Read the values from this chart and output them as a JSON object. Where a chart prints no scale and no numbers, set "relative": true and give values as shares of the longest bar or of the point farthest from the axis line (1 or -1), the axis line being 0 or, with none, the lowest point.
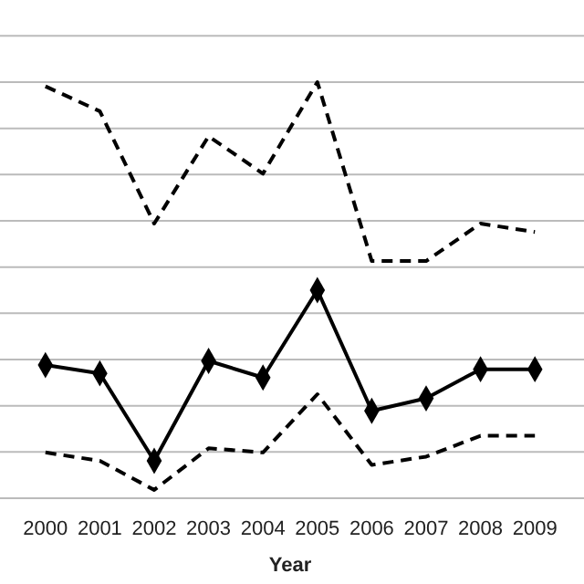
{
  "chart_data": {
    "type": "line",
    "relative": true,
    "xlabel": "Year",
    "categories": [
      "2000",
      "2001",
      "2002",
      "2003",
      "2004",
      "2005",
      "2006",
      "2007",
      "2008",
      "2009"
    ],
    "grid": "y",
    "series": [
      {
        "color": "#000000",
        "line_style": "dashed",
        "marker": "none",
        "values": [
          0.99,
          0.93,
          0.66,
          0.87,
          0.78,
          1,
          0.57,
          0.57,
          0.66,
          0.64
        ]
      },
      {
        "color": "#000000",
        "line_style": "solid",
        "marker": "diamond",
        "values": [
          0.32,
          0.3,
          0.09,
          0.33,
          0.29,
          0.5,
          0.21,
          0.24,
          0.31,
          0.31
        ]
      },
      {
        "color": "#000000",
        "line_style": "dashed",
        "marker": "none",
        "values": [
          0.11,
          0.09,
          0.02,
          0.12,
          0.11,
          0.25,
          0.08,
          0.1,
          0.15,
          0.15
        ]
      }
    ]
  }
}
